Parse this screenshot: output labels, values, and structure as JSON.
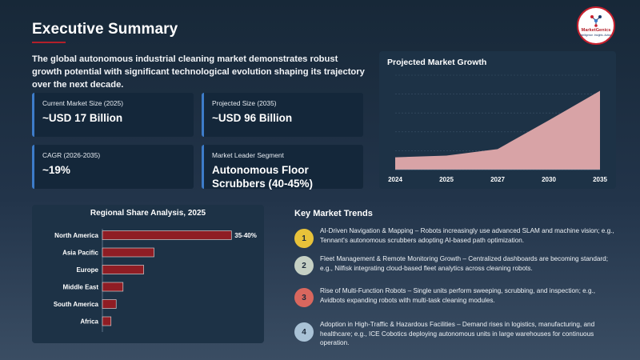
{
  "header": {
    "title": "Executive Summary",
    "intro": "The global autonomous industrial cleaning market demonstrates robust growth potential with significant technological evolution shaping its trajectory over the next decade."
  },
  "logo": {
    "name": "MarketGenics",
    "tagline": "Intelligence. Insights. Action.",
    "icon": "network-nodes-icon",
    "accent": "#c8202e"
  },
  "cards": [
    {
      "label": "Current Market Size (2025)",
      "value": "~USD 17 Billion"
    },
    {
      "label": "Projected Size (2035)",
      "value": "~USD 96 Billion"
    },
    {
      "label": "CAGR (2026-2035)",
      "value": "~19%"
    },
    {
      "label": "Market Leader Segment",
      "value": "Autonomous Floor Scrubbers (40-45%)"
    }
  ],
  "growth_chart": {
    "title": "Projected Market Growth"
  },
  "regional": {
    "title": "Regional Share Analysis, 2025"
  },
  "trends": {
    "title": "Key Market Trends",
    "items": [
      {
        "num": "1",
        "color": "#e8c23a",
        "text": "AI-Driven Navigation & Mapping – Robots increasingly use advanced SLAM and machine vision; e.g., Tennant's autonomous scrubbers adopting AI-based path optimization."
      },
      {
        "num": "2",
        "color": "#c5d0c4",
        "text": "Fleet Management & Remote Monitoring Growth – Centralized dashboards are becoming standard; e.g., Nilfisk integrating cloud-based fleet analytics across cleaning robots."
      },
      {
        "num": "3",
        "color": "#d9675e",
        "text": "Rise of Multi-Function Robots – Single units perform sweeping, scrubbing, and inspection; e.g., Avidbots expanding robots with multi-task cleaning modules."
      },
      {
        "num": "4",
        "color": "#a9c2d6",
        "text": "Adoption in High-Traffic & Hazardous Facilities – Demand rises in logistics, manufacturing, and healthcare; e.g., ICE Cobotics deploying autonomous units in large warehouses for continuous operation."
      }
    ]
  },
  "chart_data": [
    {
      "type": "area",
      "title": "Projected Market Growth",
      "x": [
        "2024",
        "2025",
        "2027",
        "2030",
        "2035"
      ],
      "values": [
        15,
        17,
        25,
        60,
        96
      ],
      "ylim": [
        0,
        115
      ],
      "grid": true,
      "fill_color": "#d8a3a6",
      "yticks_visible": false
    },
    {
      "type": "bar",
      "orientation": "horizontal",
      "title": "Regional Share Analysis, 2025",
      "categories": [
        "North America",
        "Asia Pacific",
        "Europe",
        "Middle East",
        "South America",
        "Africa"
      ],
      "values": [
        37.5,
        15,
        12,
        6,
        4,
        2.5
      ],
      "data_labels": [
        "35-40%",
        "",
        "",
        "",
        "",
        ""
      ],
      "xlim": [
        0,
        40
      ],
      "bar_color": "#8f1d24"
    }
  ]
}
